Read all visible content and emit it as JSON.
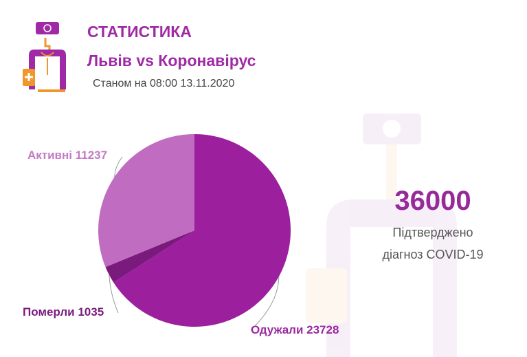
{
  "header": {
    "title": "СТАТИСТИКА",
    "subtitle": "Львів vs Коронавірус",
    "date": "Станом на 08:00 13.11.2020"
  },
  "summary": {
    "total": "36000",
    "line1": "Підтверджено",
    "line2": "діагноз COVID-19"
  },
  "logo": {
    "icon": "doctor-icon",
    "colors": {
      "purple": "#a02aa6",
      "orange": "#f0962a"
    }
  },
  "chart_data": {
    "type": "pie",
    "start": "12 o'clock, clockwise",
    "slices": [
      {
        "label": "Одужали",
        "value": 23728,
        "text": "Одужали 23728",
        "color": "#9c1f9e"
      },
      {
        "label": "Померли",
        "value": 1035,
        "text": "Померли 1035",
        "color": "#7b1a7d"
      },
      {
        "label": "Активні",
        "value": 11237,
        "text": "Активні 11237",
        "color": "#c06cc0"
      }
    ]
  }
}
